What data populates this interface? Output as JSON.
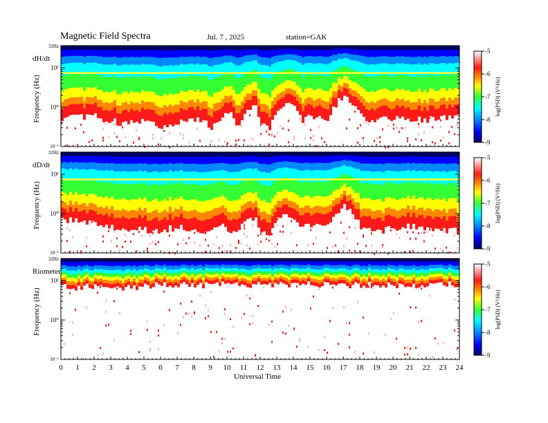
{
  "header": {
    "title": "Magnetic  Field  Spectra",
    "date": "Jul.  7  , 2025",
    "station": "station=GAK"
  },
  "colors": {
    "colormap": [
      "#ffffff",
      "#ff1a1a",
      "#ff8800",
      "#ffff00",
      "#33ff33",
      "#00ffff",
      "#0088ff",
      "#0000ff",
      "#000066"
    ],
    "background": "#ffffff"
  },
  "chart_data": [
    {
      "type": "heatmap",
      "panel_label": "dH/dt",
      "ylabel": "Frequency  (Hz)",
      "yticks": [
        "10⁻¹",
        "10⁰",
        "10¹",
        "32Hz"
      ],
      "ylim_hz": [
        0.1,
        32
      ],
      "yscale": "log",
      "xlim": [
        0,
        24
      ],
      "colorbar": {
        "label": "log(PSD) (V²/Hz)",
        "ticks": [
          "-9",
          "-8",
          "-7",
          "-6",
          "-5"
        ],
        "range": [
          -9,
          -5
        ]
      },
      "floor_profile": {
        "hours": [
          0,
          1,
          2,
          2.5,
          3,
          3.5,
          4,
          4.5,
          5,
          6,
          7,
          8,
          8.5,
          9,
          9.5,
          10,
          10.5,
          11,
          11.5,
          12,
          12.5,
          13,
          13.5,
          14,
          14.5,
          15,
          15.5,
          16,
          16.5,
          17,
          17.5,
          18,
          18.5,
          19,
          20,
          21,
          22,
          23,
          24
        ],
        "freq_hz": [
          0.5,
          0.55,
          0.6,
          0.5,
          0.45,
          0.4,
          0.4,
          0.45,
          0.45,
          0.35,
          0.4,
          0.45,
          0.5,
          0.3,
          0.5,
          0.8,
          0.3,
          0.6,
          1.2,
          0.4,
          0.3,
          1.0,
          1.2,
          1.0,
          0.5,
          0.6,
          0.6,
          0.5,
          1.2,
          2.0,
          1.3,
          0.6,
          0.5,
          0.5,
          0.55,
          0.5,
          0.5,
          0.55,
          0.55
        ]
      }
    },
    {
      "type": "heatmap",
      "panel_label": "dD/dt",
      "ylabel": "Frequency  (Hz)",
      "yticks": [
        "10⁻¹",
        "10⁰",
        "10¹",
        "32Hz"
      ],
      "ylim_hz": [
        0.1,
        32
      ],
      "yscale": "log",
      "xlim": [
        0,
        24
      ],
      "colorbar": {
        "label": "log(PSD) (V²/Hz)",
        "ticks": [
          "-9",
          "-8",
          "-7",
          "-6",
          "-5"
        ],
        "range": [
          -9,
          -5
        ]
      },
      "floor_profile": {
        "hours": [
          0,
          1,
          2,
          2.5,
          3,
          3.5,
          4,
          4.5,
          5,
          5.5,
          6,
          7,
          8,
          9,
          9.5,
          10,
          10.5,
          11,
          11.5,
          12,
          12.5,
          13,
          13.5,
          14,
          15,
          16,
          16.5,
          17,
          17.5,
          18,
          19,
          20,
          21,
          22,
          23,
          24
        ],
        "freq_hz": [
          0.7,
          0.65,
          0.6,
          0.5,
          0.45,
          0.4,
          0.4,
          0.4,
          0.4,
          0.35,
          0.4,
          0.45,
          0.4,
          0.35,
          0.6,
          0.3,
          0.3,
          0.6,
          0.8,
          0.4,
          0.3,
          0.9,
          1.1,
          0.6,
          0.5,
          0.5,
          1.0,
          1.8,
          1.0,
          0.5,
          0.35,
          0.45,
          0.5,
          0.45,
          0.4,
          0.35
        ]
      }
    },
    {
      "type": "heatmap",
      "panel_label": "Riometer",
      "ylabel": "Frequency  (Hz)",
      "yticks": [
        "10⁻¹",
        "10⁰",
        "10¹",
        "32Hz"
      ],
      "ylim_hz": [
        0.1,
        32
      ],
      "yscale": "log",
      "xlim": [
        0,
        24
      ],
      "colorbar": {
        "label": "log(PSD) (V²/Hz)",
        "ticks": [
          "-9",
          "-8",
          "-7",
          "-6",
          "-5"
        ],
        "range": [
          -9,
          -5
        ]
      },
      "floor_profile": {
        "hours": [
          0,
          3,
          4,
          5,
          6,
          12,
          18,
          24
        ],
        "freq_hz": [
          7,
          7,
          7,
          7,
          8,
          8,
          8,
          8
        ]
      }
    }
  ],
  "xaxis": {
    "label": "Universal Time",
    "ticks": [
      "0",
      "1",
      "2",
      "3",
      "4",
      "5",
      "6",
      "7",
      "8",
      "9",
      "10",
      "11",
      "12",
      "13",
      "14",
      "15",
      "16",
      "17",
      "18",
      "19",
      "20",
      "21",
      "22",
      "23",
      "24"
    ]
  }
}
